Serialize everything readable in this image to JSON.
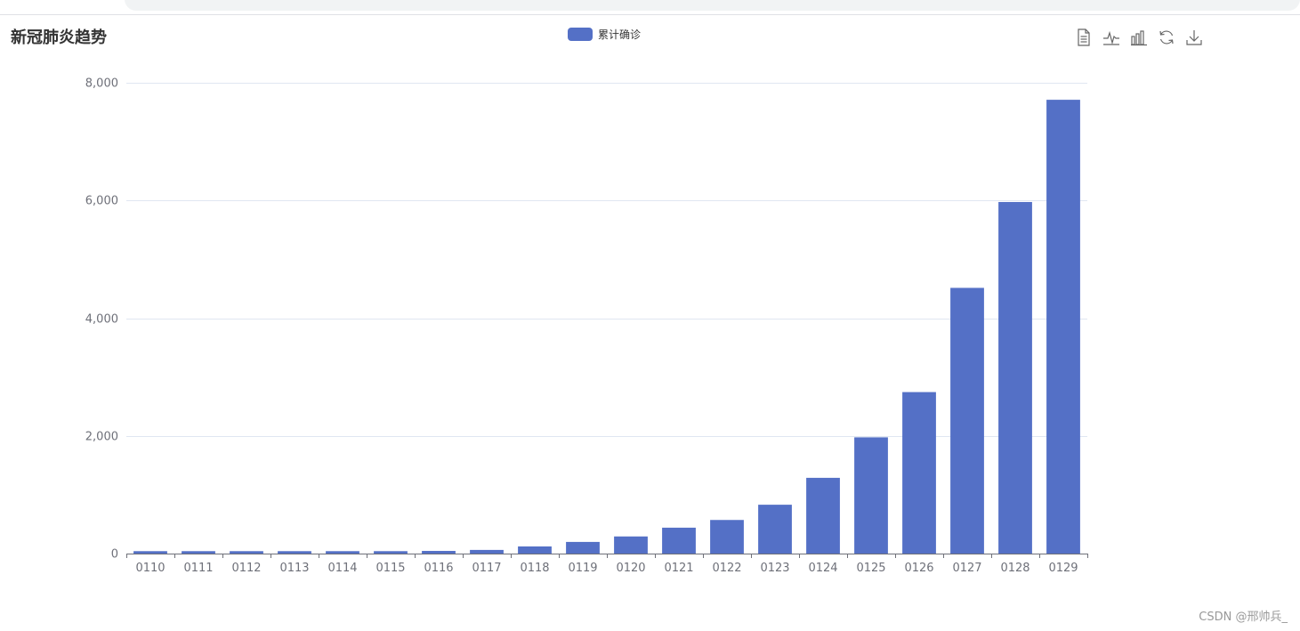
{
  "browser": {},
  "title": "新冠肺炎趋势",
  "toolbox": {
    "items": [
      {
        "name": "data-view-icon"
      },
      {
        "name": "line-chart-icon"
      },
      {
        "name": "bar-chart-icon"
      },
      {
        "name": "restore-icon"
      },
      {
        "name": "save-image-icon"
      }
    ]
  },
  "watermark": "CSDN @邢帅兵_",
  "colors": {
    "bar": "#5470c6",
    "axis": "#6e7079",
    "grid": "#e0e6f1",
    "text": "#6e7079",
    "title": "#333333",
    "icon": "#666666"
  },
  "chart_data": {
    "type": "bar",
    "title": "新冠肺炎趋势",
    "xlabel": "",
    "ylabel": "",
    "legend": [
      "累计确诊"
    ],
    "legend_position": "top-center",
    "grid": true,
    "categories": [
      "0110",
      "0111",
      "0112",
      "0113",
      "0114",
      "0115",
      "0116",
      "0117",
      "0118",
      "0119",
      "0120",
      "0121",
      "0122",
      "0123",
      "0124",
      "0125",
      "0126",
      "0127",
      "0128",
      "0129"
    ],
    "series": [
      {
        "name": "累计确诊",
        "values": [
          41,
          41,
          41,
          41,
          41,
          41,
          45,
          62,
          121,
          198,
          291,
          440,
          571,
          830,
          1287,
          1975,
          2744,
          4515,
          5974,
          7711
        ]
      }
    ],
    "ylim": [
      0,
      8000
    ],
    "yticks": [
      0,
      2000,
      4000,
      6000,
      8000
    ],
    "ytick_labels": [
      "0",
      "2,000",
      "4,000",
      "6,000",
      "8,000"
    ]
  }
}
